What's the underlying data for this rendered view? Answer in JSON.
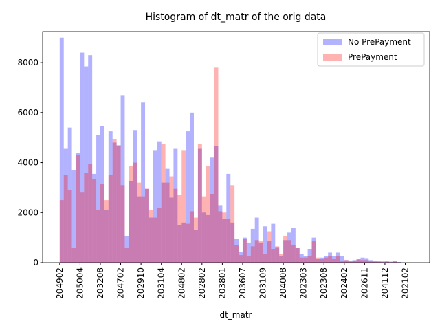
{
  "chart_data": {
    "type": "histogram",
    "title": "Histogram of dt_matr of the orig data",
    "x_label": "dt_matr",
    "bins": [
      0,
      2,
      4,
      6,
      8,
      10,
      12,
      14,
      16,
      18,
      20,
      22,
      24,
      26,
      28,
      30,
      32,
      34,
      36,
      38,
      40,
      42,
      44,
      46,
      48,
      50,
      52,
      54,
      56,
      58,
      60,
      62,
      64,
      66,
      68,
      70,
      72,
      74,
      76,
      78,
      80,
      82,
      84,
      86,
      88,
      90,
      92,
      94,
      96,
      98,
      100,
      102,
      104,
      106,
      108,
      110,
      112,
      114,
      116,
      118,
      120,
      122,
      124,
      126,
      128,
      130,
      132,
      134,
      136,
      138,
      140,
      142,
      144,
      146,
      148,
      150,
      152,
      154,
      156,
      158,
      160,
      162,
      164,
      166,
      168
    ],
    "series": [
      {
        "name": "No PrePayment",
        "color": "#0000ff",
        "alpha": 0.3,
        "values": [
          9000,
          4550,
          5400,
          3700,
          4400,
          8400,
          7850,
          8300,
          3550,
          5100,
          5450,
          2100,
          5250,
          4800,
          4650,
          6700,
          1050,
          3250,
          5300,
          2650,
          6400,
          2950,
          1800,
          4500,
          4850,
          3200,
          3750,
          2600,
          4550,
          1500,
          1600,
          5250,
          6000,
          1300,
          4550,
          2000,
          1900,
          4200,
          4650,
          2300,
          1750,
          3550,
          1600,
          950,
          420,
          1000,
          800,
          1350,
          1800,
          800,
          1450,
          850,
          1550,
          620,
          250,
          900,
          1200,
          1400,
          600,
          350,
          250,
          550,
          1000,
          150,
          200,
          250,
          400,
          250,
          400,
          250,
          100,
          50,
          100,
          150,
          200,
          180,
          100,
          80,
          60,
          50,
          70,
          40,
          60,
          30
        ]
      },
      {
        "name": "PrePayment",
        "color": "#ff0000",
        "alpha": 0.3,
        "values": [
          2500,
          3500,
          2900,
          600,
          4300,
          2800,
          3600,
          3950,
          3350,
          2100,
          3150,
          2500,
          3500,
          4950,
          4700,
          3100,
          600,
          3850,
          4000,
          3200,
          2650,
          2950,
          2100,
          1800,
          2200,
          4750,
          3200,
          3450,
          2950,
          2700,
          4500,
          1550,
          2050,
          1800,
          4750,
          2650,
          3850,
          2750,
          7800,
          2050,
          2000,
          1750,
          3100,
          700,
          300,
          950,
          250,
          650,
          900,
          850,
          350,
          1250,
          550,
          650,
          350,
          1050,
          900,
          700,
          600,
          200,
          200,
          250,
          850,
          200,
          150,
          200,
          250,
          150,
          250,
          50,
          100,
          50,
          80,
          120,
          100,
          100,
          50,
          40,
          30,
          20,
          30,
          20,
          40,
          10
        ]
      }
    ],
    "xlim": [
      -8.4,
      182
    ],
    "ylim": [
      0,
      9240
    ],
    "xticks": [
      {
        "value": 0,
        "label": "204902"
      },
      {
        "value": 10,
        "label": "205004"
      },
      {
        "value": 20,
        "label": "203208"
      },
      {
        "value": 30,
        "label": "204702"
      },
      {
        "value": 40,
        "label": "202910"
      },
      {
        "value": 50,
        "label": "203104"
      },
      {
        "value": 60,
        "label": "204802"
      },
      {
        "value": 70,
        "label": "202802"
      },
      {
        "value": 80,
        "label": "203801"
      },
      {
        "value": 90,
        "label": "203607"
      },
      {
        "value": 100,
        "label": "203109"
      },
      {
        "value": 110,
        "label": "204008"
      },
      {
        "value": 120,
        "label": "202303"
      },
      {
        "value": 130,
        "label": "202308"
      },
      {
        "value": 140,
        "label": "202402"
      },
      {
        "value": 150,
        "label": "202611"
      },
      {
        "value": 160,
        "label": "204112"
      },
      {
        "value": 170,
        "label": "202102"
      }
    ],
    "yticks": [
      0,
      2000,
      4000,
      6000,
      8000
    ],
    "legend": "upper right"
  }
}
